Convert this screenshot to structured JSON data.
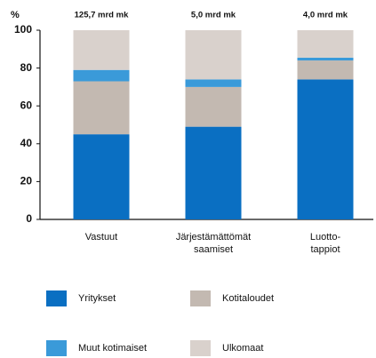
{
  "chart_data": {
    "type": "stacked_bar",
    "y_label": "%",
    "categories": [
      [
        "Vastuut"
      ],
      [
        "Järjestämättömät",
        "saamiset"
      ],
      [
        "Luotto-",
        "tappiot"
      ]
    ],
    "totals": [
      "125,7 mrd mk",
      "5,0 mrd mk",
      "4,0 mrd mk"
    ],
    "series": [
      {
        "name": "Yritykset",
        "color": "#0a6fc2",
        "values": [
          45,
          49,
          74
        ]
      },
      {
        "name": "Kotitaloudet",
        "color": "#c3b9b1",
        "values": [
          28,
          21,
          10
        ]
      },
      {
        "name": "Muut kotimaiset",
        "color": "#3a9ad9",
        "values": [
          6,
          4,
          1.5
        ]
      },
      {
        "name": "Ulkomaat",
        "color": "#d9d1cc",
        "values": [
          21,
          26,
          14.5
        ]
      }
    ],
    "ylim": [
      0,
      100
    ],
    "yticks": [
      0,
      20,
      40,
      60,
      80,
      100
    ],
    "grid": false
  }
}
